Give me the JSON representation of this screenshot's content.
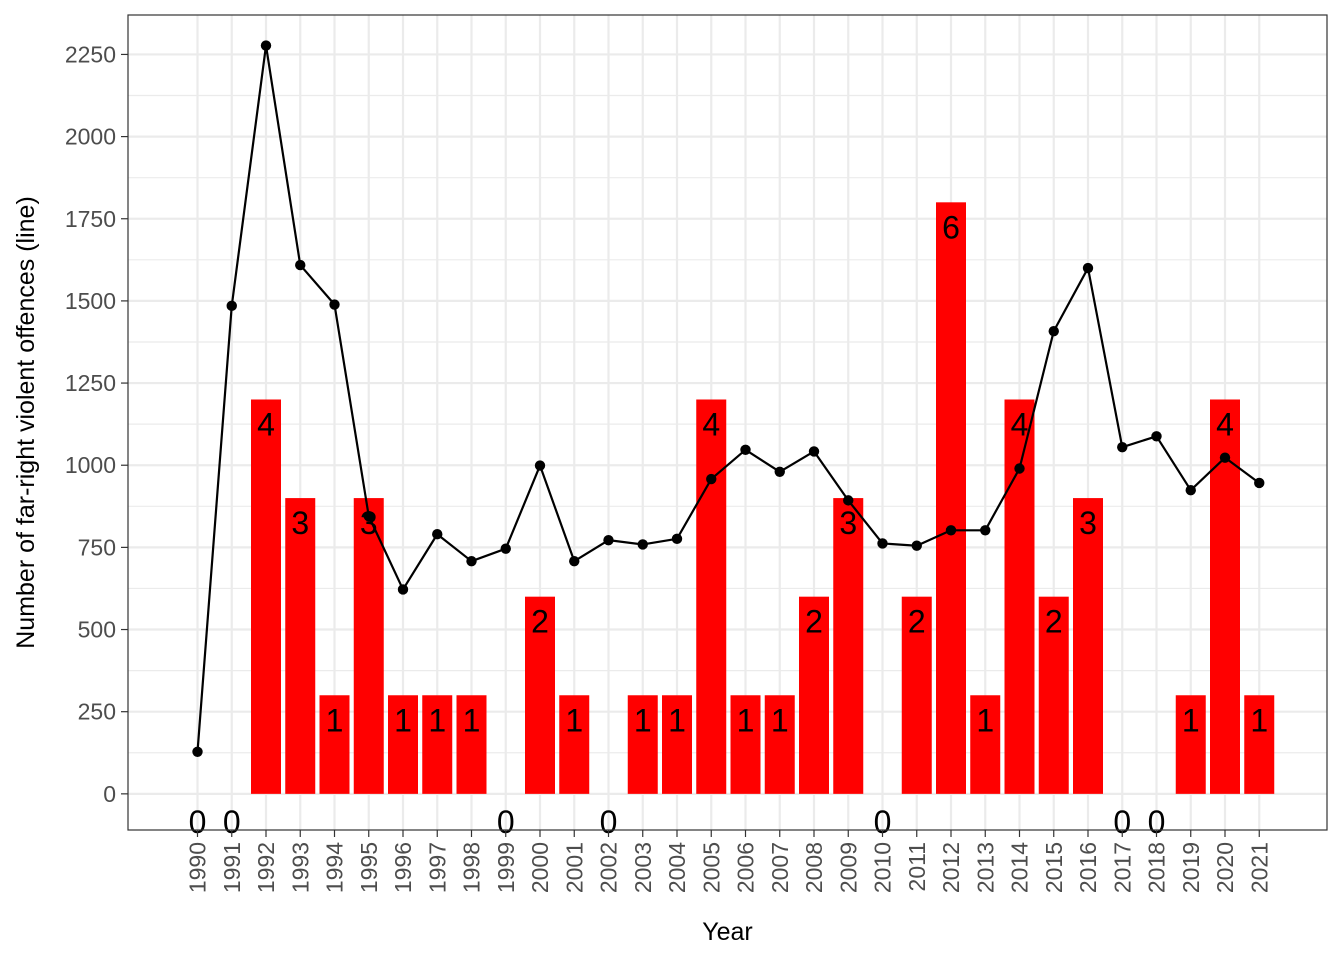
{
  "chart_data": {
    "type": "bar",
    "categories": [
      "1990",
      "1991",
      "1992",
      "1993",
      "1994",
      "1995",
      "1996",
      "1997",
      "1998",
      "1999",
      "2000",
      "2001",
      "2002",
      "2003",
      "2004",
      "2005",
      "2006",
      "2007",
      "2008",
      "2009",
      "2010",
      "2011",
      "2012",
      "2013",
      "2014",
      "2015",
      "2016",
      "2017",
      "2018",
      "2019",
      "2020",
      "2021"
    ],
    "series": [
      {
        "type": "bar",
        "color": "#ff0000",
        "values": [
          0,
          0,
          4,
          3,
          1,
          3,
          1,
          1,
          1,
          0,
          2,
          1,
          0,
          1,
          1,
          4,
          1,
          1,
          2,
          3,
          0,
          2,
          6,
          1,
          4,
          2,
          3,
          0,
          0,
          1,
          4,
          1
        ],
        "labels": [
          "0",
          "0",
          "4",
          "3",
          "1",
          "3",
          "1",
          "1",
          "1",
          "0",
          "2",
          "1",
          "0",
          "1",
          "1",
          "4",
          "1",
          "1",
          "2",
          "3",
          "0",
          "2",
          "6",
          "1",
          "4",
          "2",
          "3",
          "0",
          "0",
          "1",
          "4",
          "1"
        ]
      },
      {
        "name": "line",
        "type": "line",
        "color": "#000000",
        "values": [
          128,
          1485,
          2277,
          1609,
          1489,
          845,
          622,
          790,
          708,
          746,
          999,
          708,
          772,
          759,
          776,
          958,
          1047,
          980,
          1042,
          893,
          762,
          755,
          802,
          802,
          990,
          1408,
          1600,
          1055,
          1088,
          924,
          1023,
          946
        ]
      }
    ],
    "xlabel": "Year",
    "ylabel": "Number of far-right violent offences (line)",
    "bar_unit": 300,
    "ylim": [
      -110,
      2370
    ],
    "yticks": [
      0,
      250,
      500,
      750,
      1000,
      1250,
      1500,
      1750,
      2000,
      2250
    ],
    "ytick_labels": [
      "0",
      "250",
      "500",
      "750",
      "1000",
      "1250",
      "1500",
      "1750",
      "2000",
      "2250"
    ],
    "grid": true
  }
}
